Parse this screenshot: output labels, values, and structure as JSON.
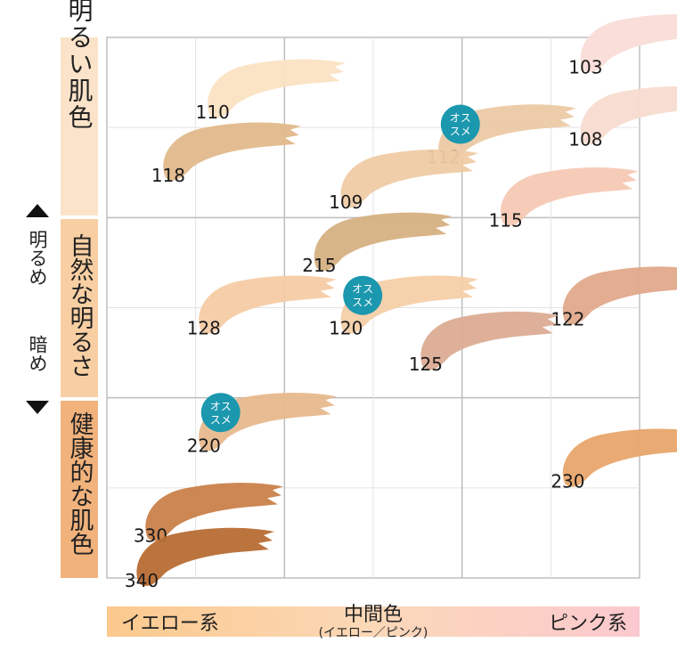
{
  "chart_data": {
    "type": "scatter",
    "title": "",
    "x_axis": {
      "left_label": "イエロー系",
      "center_label": "中間色",
      "center_sublabel": "(イエロー／ピンク)",
      "right_label": "ピンク系",
      "range": [
        0,
        6
      ]
    },
    "y_axis": {
      "top_label": "明るめ",
      "bottom_label": "暗め",
      "range": [
        0,
        6
      ],
      "bands": [
        {
          "label": "明るい肌色",
          "color": "#fbe3c9"
        },
        {
          "label": "自然な明るさ",
          "color": "#f8cfa3"
        },
        {
          "label": "健康的な肌色",
          "color": "#f1b27c"
        }
      ]
    },
    "grid": true,
    "badge_text": "オススメ",
    "badge_color": "#1b97ae",
    "points": [
      {
        "label": "103",
        "x": 5.2,
        "y": 5.7,
        "color": "#f9dcd7",
        "recommended": false
      },
      {
        "label": "108",
        "x": 5.2,
        "y": 4.9,
        "color": "#f8dcd0",
        "recommended": false
      },
      {
        "label": "110",
        "x": 1.0,
        "y": 5.2,
        "color": "#fbe1c3",
        "recommended": false
      },
      {
        "label": "112",
        "x": 3.6,
        "y": 4.7,
        "color": "#ecc9a4",
        "recommended": true
      },
      {
        "label": "115",
        "x": 4.3,
        "y": 4.0,
        "color": "#f6c9b4",
        "recommended": false
      },
      {
        "label": "118",
        "x": 0.5,
        "y": 4.5,
        "color": "#e2b98b",
        "recommended": false
      },
      {
        "label": "109",
        "x": 2.5,
        "y": 4.2,
        "color": "#efcba5",
        "recommended": false
      },
      {
        "label": "215",
        "x": 2.2,
        "y": 3.5,
        "color": "#d6b182",
        "recommended": false
      },
      {
        "label": "120",
        "x": 2.5,
        "y": 2.8,
        "color": "#f4cfa8",
        "recommended": true
      },
      {
        "label": "122",
        "x": 5.0,
        "y": 2.9,
        "color": "#e0a98b",
        "recommended": false
      },
      {
        "label": "125",
        "x": 3.4,
        "y": 2.4,
        "color": "#dcac93",
        "recommended": false
      },
      {
        "label": "128",
        "x": 0.9,
        "y": 2.8,
        "color": "#f6cca5",
        "recommended": false
      },
      {
        "label": "220",
        "x": 0.9,
        "y": 1.5,
        "color": "#e8b98e",
        "recommended": true
      },
      {
        "label": "230",
        "x": 5.0,
        "y": 1.1,
        "color": "#e8a66c",
        "recommended": false
      },
      {
        "label": "330",
        "x": 0.3,
        "y": 0.5,
        "color": "#c98149",
        "recommended": false
      },
      {
        "label": "340",
        "x": 0.2,
        "y": 0.0,
        "color": "#b86d34",
        "recommended": false
      }
    ]
  }
}
